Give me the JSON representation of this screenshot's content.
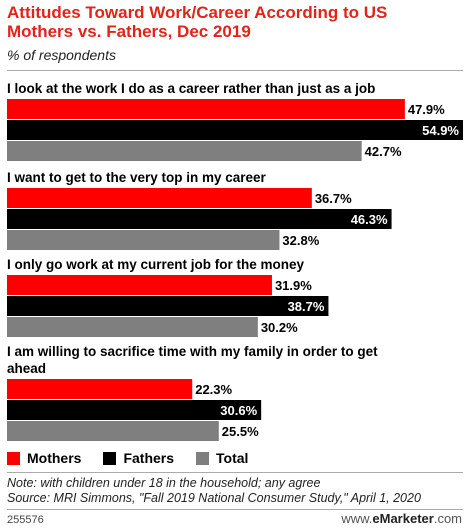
{
  "header": {
    "title": "Attitudes Toward Work/Career According to US Mothers vs. Fathers, Dec 2019",
    "subtitle": "% of respondents"
  },
  "chart_data": {
    "type": "bar",
    "orientation": "horizontal",
    "categories": [
      "I look at the work I do as a career rather than just as a job",
      "I want to get to the very top in my career",
      "I only go work at my current job for the money",
      "I am willing to sacrifice time with my family in order to get ahead"
    ],
    "series": [
      {
        "name": "Mothers",
        "color": "#ff0000",
        "values": [
          47.9,
          36.7,
          31.9,
          22.3
        ]
      },
      {
        "name": "Fathers",
        "color": "#000000",
        "values": [
          54.9,
          46.3,
          38.7,
          30.6
        ]
      },
      {
        "name": "Total",
        "color": "#7f7f7f",
        "values": [
          42.7,
          32.8,
          30.2,
          25.5
        ]
      }
    ],
    "value_suffix": "%",
    "xlim": [
      0,
      54.9
    ],
    "grid": false,
    "legend_position": "bottom-left"
  },
  "footer": {
    "note": "Note: with children under 18 in the household; any agree",
    "source": "Source: MRI Simmons, \"Fall 2019 National Consumer Study,\" April 1, 2020",
    "chart_id": "255576",
    "brand_prefix": "www.",
    "brand_name": "eMarketer",
    "brand_suffix": ".com"
  }
}
